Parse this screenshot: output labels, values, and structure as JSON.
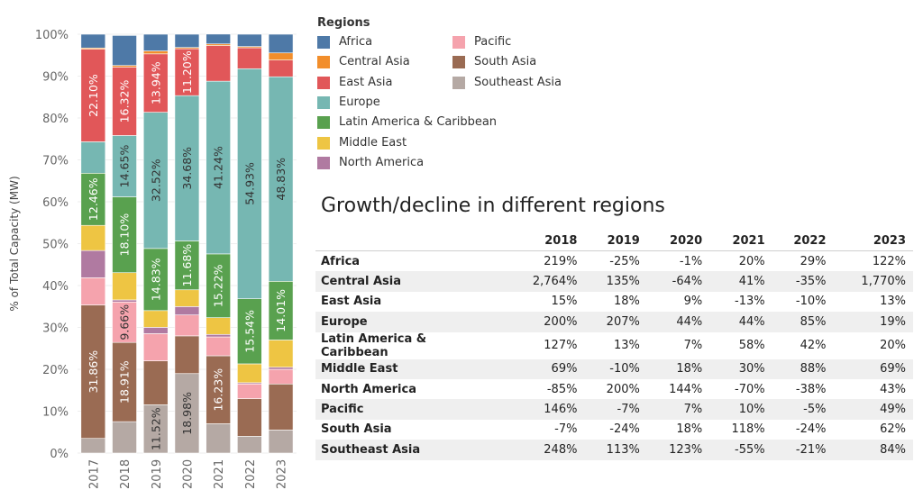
{
  "chart_data": {
    "type": "bar",
    "stacked": true,
    "ylabel": "% of Total Capacity (MW)",
    "ylim": [
      0,
      100
    ],
    "yticks": [
      "0%",
      "10%",
      "20%",
      "30%",
      "40%",
      "50%",
      "60%",
      "70%",
      "80%",
      "90%",
      "100%"
    ],
    "categories": [
      "2017",
      "2018",
      "2019",
      "2020",
      "2021",
      "2022",
      "2023"
    ],
    "series": [
      {
        "name": "Southeast Asia",
        "color": "#b5a9a4",
        "values": [
          3.5,
          7.5,
          11.52,
          18.98,
          7.0,
          4.0,
          5.5
        ]
      },
      {
        "name": "South Asia",
        "color": "#9a6b53",
        "values": [
          31.86,
          18.91,
          10.5,
          9.0,
          16.23,
          9.0,
          11.0
        ]
      },
      {
        "name": "Pacific",
        "color": "#f5a3ad",
        "values": [
          6.5,
          9.66,
          6.5,
          5.0,
          4.5,
          3.5,
          3.5
        ]
      },
      {
        "name": "North America",
        "color": "#b07aa1",
        "values": [
          6.5,
          0.5,
          1.5,
          2.0,
          0.6,
          0.3,
          0.5
        ]
      },
      {
        "name": "Middle East",
        "color": "#eec543",
        "values": [
          6.0,
          6.5,
          4.0,
          4.0,
          4.0,
          4.5,
          6.5
        ]
      },
      {
        "name": "Latin America & Caribbean",
        "color": "#59a14f",
        "values": [
          12.46,
          18.1,
          14.83,
          11.68,
          15.22,
          15.54,
          14.01
        ]
      },
      {
        "name": "Europe",
        "color": "#76b7b2",
        "values": [
          7.5,
          14.65,
          32.52,
          34.68,
          41.24,
          54.93,
          48.83
        ]
      },
      {
        "name": "East Asia",
        "color": "#e15759",
        "values": [
          22.1,
          16.32,
          13.94,
          11.2,
          8.5,
          5.0,
          4.0
        ]
      },
      {
        "name": "Central Asia",
        "color": "#f28e2b",
        "values": [
          0.3,
          0.4,
          0.7,
          0.3,
          0.4,
          0.3,
          1.7
        ]
      },
      {
        "name": "Africa",
        "color": "#4e79a7",
        "values": [
          3.28,
          7.16,
          3.99,
          3.16,
          2.34,
          2.93,
          4.46
        ]
      }
    ],
    "labels": [
      {
        "year": "2017",
        "series": "Southeast Asia",
        "text": "",
        "color": "#ffffff"
      },
      {
        "year": "2017",
        "series": "South Asia",
        "text": "31.86%",
        "color": "#ffffff"
      },
      {
        "year": "2017",
        "series": "Latin America & Caribbean",
        "text": "12.46%",
        "color": "#ffffff"
      },
      {
        "year": "2017",
        "series": "East Asia",
        "text": "22.10%",
        "color": "#ffffff"
      },
      {
        "year": "2018",
        "series": "South Asia",
        "text": "18.91%",
        "color": "#ffffff"
      },
      {
        "year": "2018",
        "series": "Pacific",
        "text": "9.66%",
        "color": "#333333"
      },
      {
        "year": "2018",
        "series": "Latin America & Caribbean",
        "text": "18.10%",
        "color": "#ffffff"
      },
      {
        "year": "2018",
        "series": "Europe",
        "text": "14.65%",
        "color": "#333333"
      },
      {
        "year": "2018",
        "series": "East Asia",
        "text": "16.32%",
        "color": "#ffffff"
      },
      {
        "year": "2019",
        "series": "Southeast Asia",
        "text": "11.52%",
        "color": "#333333"
      },
      {
        "year": "2019",
        "series": "Latin America & Caribbean",
        "text": "14.83%",
        "color": "#ffffff"
      },
      {
        "year": "2019",
        "series": "Europe",
        "text": "32.52%",
        "color": "#333333"
      },
      {
        "year": "2019",
        "series": "East Asia",
        "text": "13.94%",
        "color": "#ffffff"
      },
      {
        "year": "2020",
        "series": "Southeast Asia",
        "text": "18.98%",
        "color": "#333333"
      },
      {
        "year": "2020",
        "series": "Latin America & Caribbean",
        "text": "11.68%",
        "color": "#ffffff"
      },
      {
        "year": "2020",
        "series": "Europe",
        "text": "34.68%",
        "color": "#333333"
      },
      {
        "year": "2020",
        "series": "East Asia",
        "text": "11.20%",
        "color": "#ffffff"
      },
      {
        "year": "2021",
        "series": "South Asia",
        "text": "16.23%",
        "color": "#ffffff"
      },
      {
        "year": "2021",
        "series": "Latin America & Caribbean",
        "text": "15.22%",
        "color": "#ffffff"
      },
      {
        "year": "2021",
        "series": "Europe",
        "text": "41.24%",
        "color": "#333333"
      },
      {
        "year": "2022",
        "series": "Latin America & Caribbean",
        "text": "15.54%",
        "color": "#ffffff"
      },
      {
        "year": "2022",
        "series": "Europe",
        "text": "54.93%",
        "color": "#333333"
      },
      {
        "year": "2023",
        "series": "Latin America & Caribbean",
        "text": "14.01%",
        "color": "#ffffff"
      },
      {
        "year": "2023",
        "series": "Europe",
        "text": "48.83%",
        "color": "#333333"
      }
    ]
  },
  "legend": {
    "title": "Regions",
    "items": [
      {
        "label": "Africa",
        "color": "#4e79a7"
      },
      {
        "label": "Central Asia",
        "color": "#f28e2b"
      },
      {
        "label": "East Asia",
        "color": "#e15759"
      },
      {
        "label": "Europe",
        "color": "#76b7b2"
      },
      {
        "label": "Latin America & Caribbean",
        "color": "#59a14f"
      },
      {
        "label": "Middle East",
        "color": "#eec543"
      },
      {
        "label": "North America",
        "color": "#b07aa1"
      },
      {
        "label": "Pacific",
        "color": "#f5a3ad"
      },
      {
        "label": "South Asia",
        "color": "#9a6b53"
      },
      {
        "label": "Southeast Asia",
        "color": "#b5a9a4"
      }
    ]
  },
  "growth_table": {
    "title": "Growth/decline in different regions",
    "years": [
      "2018",
      "2019",
      "2020",
      "2021",
      "2022",
      "2023"
    ],
    "rows": [
      {
        "region": "Africa",
        "values": [
          "219%",
          "-25%",
          "-1%",
          "20%",
          "29%",
          "122%"
        ]
      },
      {
        "region": "Central Asia",
        "values": [
          "2,764%",
          "135%",
          "-64%",
          "41%",
          "-35%",
          "1,770%"
        ]
      },
      {
        "region": "East Asia",
        "values": [
          "15%",
          "18%",
          "9%",
          "-13%",
          "-10%",
          "13%"
        ]
      },
      {
        "region": "Europe",
        "values": [
          "200%",
          "207%",
          "44%",
          "44%",
          "85%",
          "19%"
        ]
      },
      {
        "region": "Latin America & Caribbean",
        "values": [
          "127%",
          "13%",
          "7%",
          "58%",
          "42%",
          "20%"
        ]
      },
      {
        "region": "Middle East",
        "values": [
          "69%",
          "-10%",
          "18%",
          "30%",
          "88%",
          "69%"
        ]
      },
      {
        "region": "North America",
        "values": [
          "-85%",
          "200%",
          "144%",
          "-70%",
          "-38%",
          "43%"
        ]
      },
      {
        "region": "Pacific",
        "values": [
          "146%",
          "-7%",
          "7%",
          "10%",
          "-5%",
          "49%"
        ]
      },
      {
        "region": "South Asia",
        "values": [
          "-7%",
          "-24%",
          "18%",
          "118%",
          "-24%",
          "62%"
        ]
      },
      {
        "region": "Southeast Asia",
        "values": [
          "248%",
          "113%",
          "123%",
          "-55%",
          "-21%",
          "84%"
        ]
      }
    ]
  }
}
